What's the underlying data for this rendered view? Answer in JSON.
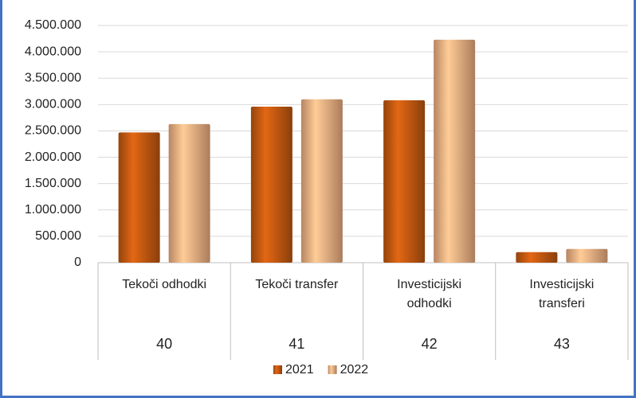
{
  "chart_data": {
    "type": "bar",
    "categories": [
      "Tekoči odhodki",
      "Tekoči transfer",
      "Investicijski odhodki",
      "Investicijski transferi"
    ],
    "codes": [
      "40",
      "41",
      "42",
      "43"
    ],
    "series": [
      {
        "name": "2021",
        "color": "#c55a11",
        "values": [
          2470000,
          2960000,
          3080000,
          200000
        ]
      },
      {
        "name": "2022",
        "color": "#f4b183",
        "values": [
          2630000,
          3100000,
          4230000,
          260000
        ]
      }
    ],
    "ylim": [
      0,
      4500000
    ],
    "yticks": [
      0,
      {
        "value": 500000,
        "label": "500.000"
      },
      {
        "value": 1000000,
        "label": "1.000.000"
      },
      {
        "value": 1500000,
        "label": "1.500.000"
      },
      {
        "value": 2000000,
        "label": "2.000.000"
      },
      {
        "value": 2500000,
        "label": "2.500.000"
      },
      {
        "value": 3000000,
        "label": "3.000.000"
      },
      {
        "value": 3500000,
        "label": "3.500.000"
      },
      {
        "value": 4000000,
        "label": "4.000.000"
      },
      {
        "value": 4500000,
        "label": "4.500.000"
      }
    ],
    "grid": true,
    "legend": "bottom"
  }
}
